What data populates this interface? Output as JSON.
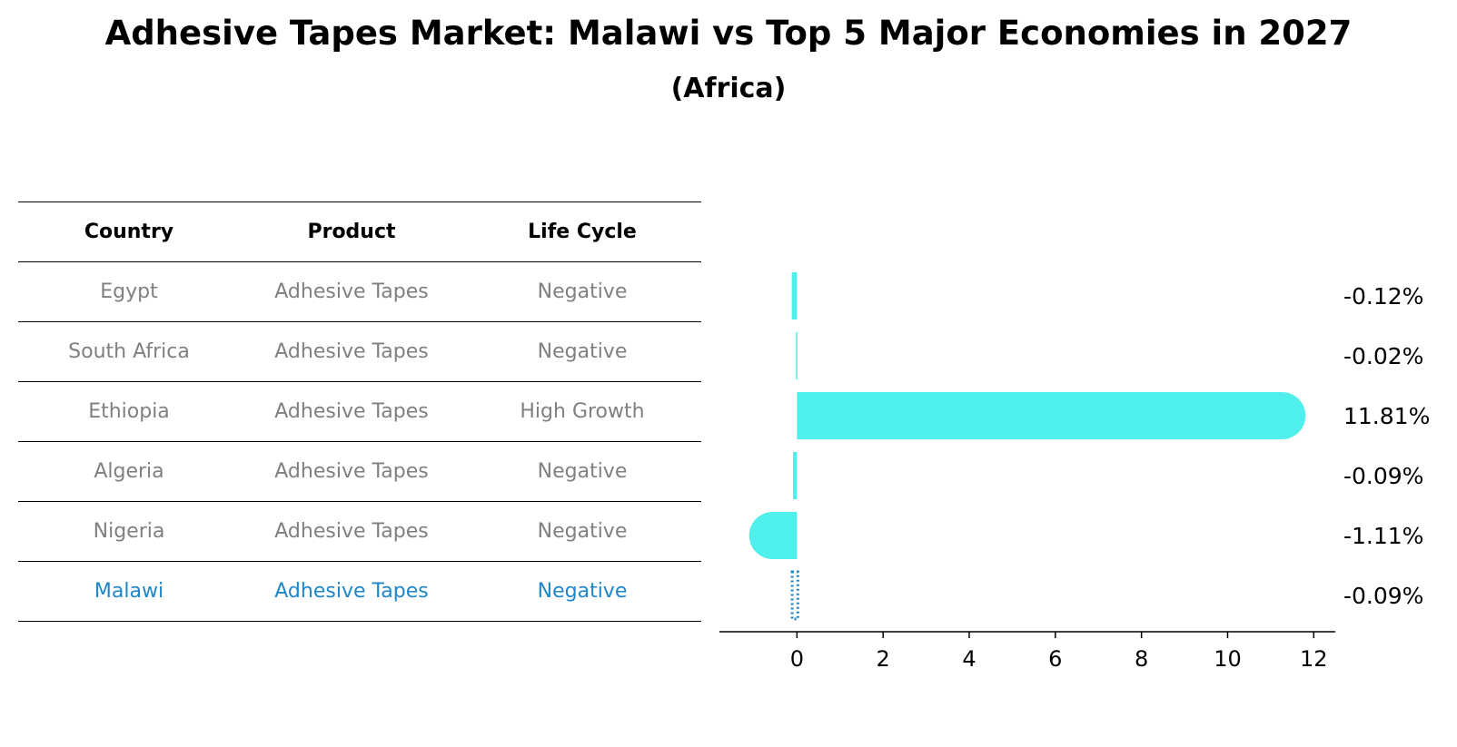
{
  "title": "Adhesive Tapes Market: Malawi vs Top 5 Major Economies in 2027",
  "subtitle": "(Africa)",
  "table": {
    "headers": [
      "Country",
      "Product",
      "Life Cycle"
    ],
    "rows": [
      [
        "Egypt",
        "Adhesive Tapes",
        "Negative"
      ],
      [
        "South Africa",
        "Adhesive Tapes",
        "Negative"
      ],
      [
        "Ethiopia",
        "Adhesive Tapes",
        "High Growth"
      ],
      [
        "Algeria",
        "Adhesive Tapes",
        "Negative"
      ],
      [
        "Nigeria",
        "Adhesive Tapes",
        "Negative"
      ],
      [
        "Malawi",
        "Adhesive Tapes",
        "Negative"
      ]
    ]
  },
  "chart_data": {
    "type": "bar",
    "orientation": "horizontal",
    "categories": [
      "Egypt",
      "South Africa",
      "Ethiopia",
      "Algeria",
      "Nigeria",
      "Malawi"
    ],
    "values": [
      -0.12,
      -0.02,
      11.81,
      -0.09,
      -1.11,
      -0.09
    ],
    "labels": [
      "-0.12%",
      "-0.02%",
      "11.81%",
      "-0.09%",
      "-1.11%",
      "-0.09%"
    ],
    "highlight": "Malawi",
    "xlim": [
      -1.8,
      12.5
    ],
    "xticks": [
      0,
      2,
      4,
      6,
      8,
      10,
      12
    ],
    "xlabel": "",
    "ylabel": "",
    "grid": false
  },
  "colors": {
    "bar": "#4fefeb",
    "highlight": "#1f86c8",
    "muted_text": "#808080"
  }
}
